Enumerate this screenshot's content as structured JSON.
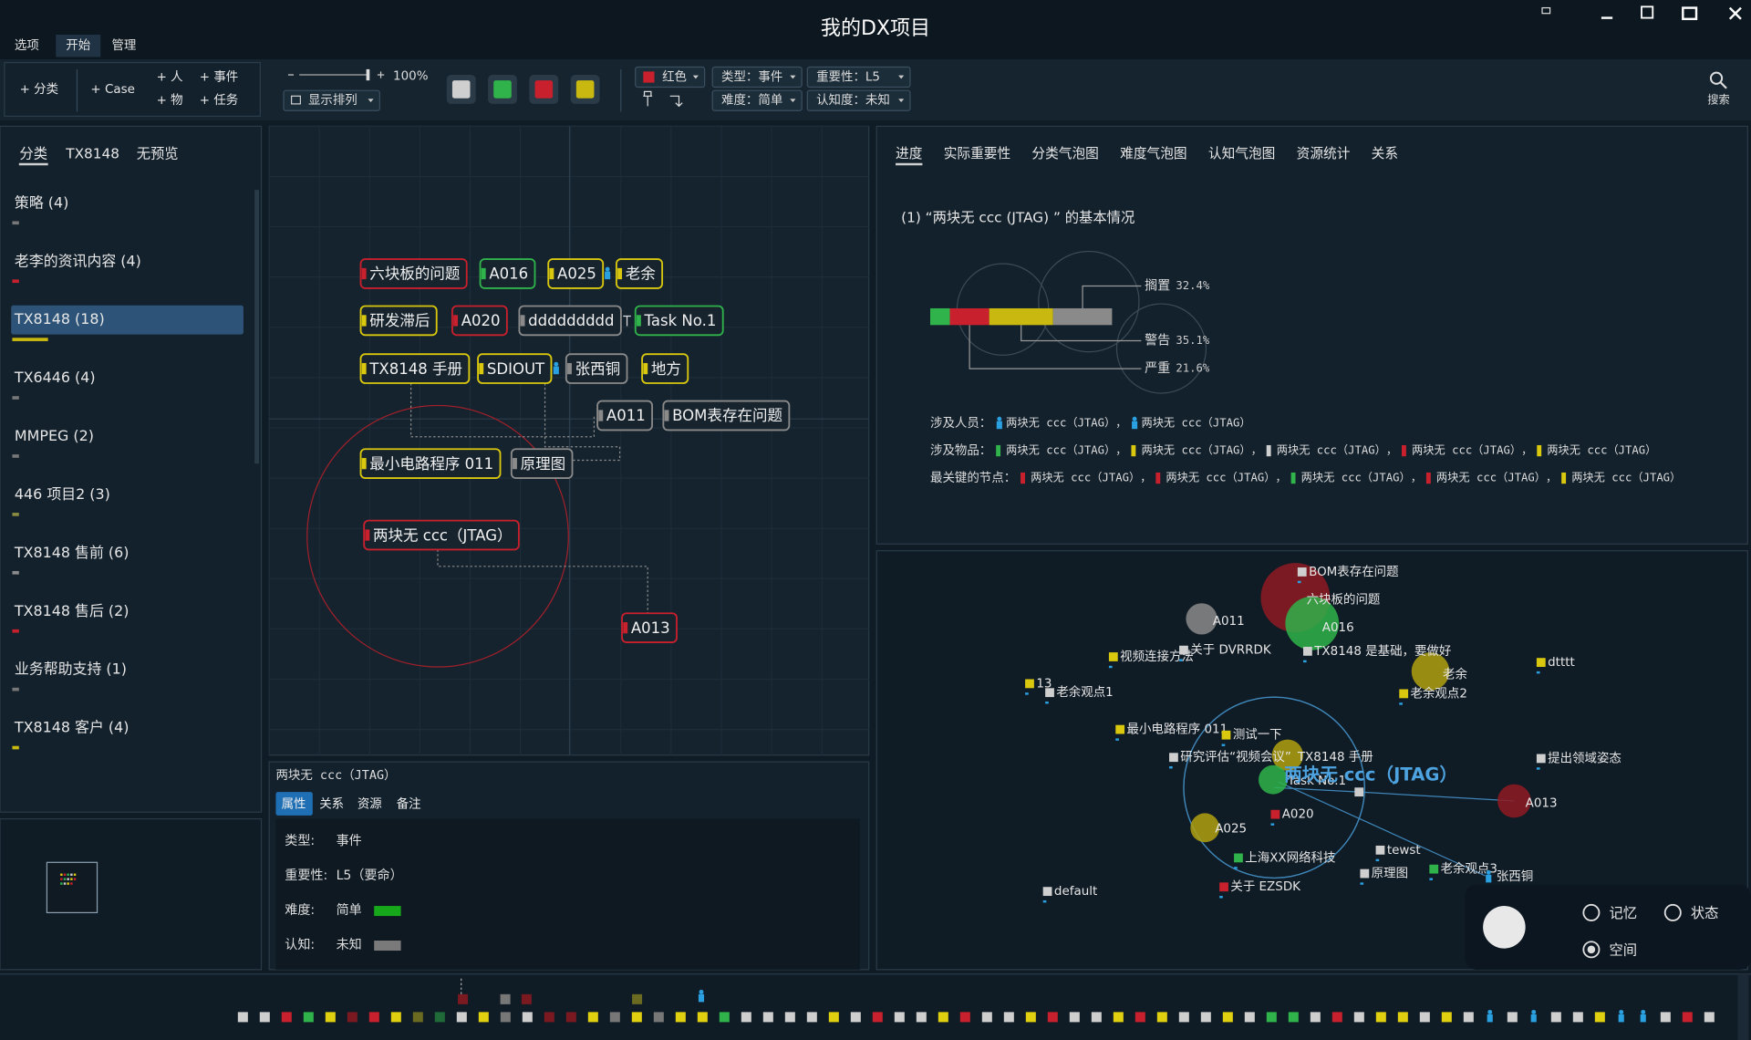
{
  "title": "我的DX项目",
  "menu": [
    "选项",
    "开始",
    "管理"
  ],
  "toolbar": {
    "add": [
      "+ 分类",
      "+ Case",
      "+ 人",
      "+ 物",
      "+ 事件",
      "+ 任务"
    ],
    "zoom": "100%",
    "arrange": "显示排列",
    "swatches": [
      "#cfcfcf",
      "#2fb34a",
      "#c8202c",
      "#c8b810"
    ],
    "color": {
      "label": "红色",
      "color": "#c8202c"
    },
    "filters": [
      "类型：事件",
      "重要性：L5",
      "难度：简单",
      "认知度：未知"
    ],
    "search": "搜索"
  },
  "left_tabs": [
    "分类",
    "TX8148",
    "无预览"
  ],
  "categories": {
    "items": [
      "策略 (4)",
      "老李的资讯内容 (4)",
      "TX8148 (18)",
      "TX6446 (4)",
      "MMPEG (2)",
      "446 项目2 (3)",
      "TX8148 售前 (6)",
      "TX8148 售后 (2)",
      "业务帮助支持 (1)",
      "TX8148 客户 (4)"
    ],
    "selected": 2
  },
  "canvas": {
    "nodes": [
      {
        "label": "六块板的问题",
        "color": "#c8202c"
      },
      {
        "label": "A016",
        "color": "#2fb34a"
      },
      {
        "label": "A025",
        "color": "#d9c80e"
      },
      {
        "label": "老余",
        "color": "#d9c80e"
      },
      {
        "label": "研发滞后",
        "color": "#d9c80e"
      },
      {
        "label": "A020",
        "color": "#c8202c"
      },
      {
        "label": "ddddddddd",
        "color": "#8a8a8a"
      },
      {
        "label": "Task No.1",
        "color": "#2fb34a"
      },
      {
        "label": "TX8148 手册",
        "color": "#d9c80e"
      },
      {
        "label": "SDIOUT",
        "color": "#d9c80e"
      },
      {
        "label": "张西铜",
        "color": "#8a8a8a"
      },
      {
        "label": "地方",
        "color": "#d9c80e"
      },
      {
        "label": "A011",
        "color": "#8a8a8a"
      },
      {
        "label": "BOM表存在问题",
        "color": "#8a8a8a"
      },
      {
        "label": "最小电路程序 011",
        "color": "#d9c80e"
      },
      {
        "label": "原理图",
        "color": "#8a8a8a"
      },
      {
        "label": "两块无 ccc（JTAG）",
        "color": "#c8202c"
      },
      {
        "label": "A013",
        "color": "#c8202c"
      }
    ]
  },
  "detail": {
    "title": "两块无 ccc（JTAG）",
    "tabs": [
      "属性",
      "关系",
      "资源",
      "备注"
    ],
    "selected": 0,
    "props": [
      {
        "key": "类型:",
        "value": "事件"
      },
      {
        "key": "重要性:",
        "value": "L5（要命）"
      },
      {
        "key": "难度:",
        "value": "简单",
        "color": "#16a81a"
      },
      {
        "key": "认知:",
        "value": "未知",
        "color": "#7a7a7a"
      }
    ]
  },
  "right_tabs": [
    "进度",
    "实际重要性",
    "分类气泡图",
    "难度气泡图",
    "认知气泡图",
    "资源统计",
    "关系"
  ],
  "summary": {
    "heading": "(1) “两块无 ccc (JTAG) ” 的基本情况",
    "segments": [
      {
        "value": 10.8,
        "color": "#2fb34a"
      },
      {
        "value": 21.6,
        "color": "#c8202c",
        "name": "严重",
        "value_label": "21.6%"
      },
      {
        "value": 35.1,
        "color": "#c8b810",
        "name": "警告",
        "value_label": "35.1%"
      },
      {
        "value": 32.4,
        "color": "#8a8a8a",
        "name": "搁置",
        "value_label": "32.4%"
      }
    ],
    "rows": [
      {
        "label": "涉及人员：",
        "separator": "，",
        "items": [
          {
            "name": "两块无 ccc（JTAG）",
            "color": "#2aa0e0",
            "person": true
          },
          {
            "name": "两块无 ccc（JTAG）",
            "color": "#2aa0e0",
            "person": true
          }
        ]
      },
      {
        "label": "涉及物品：",
        "separator": "，",
        "items": [
          {
            "name": "两块无 ccc（JTAG）",
            "color": "#2fb34a"
          },
          {
            "name": "两块无 ccc（JTAG）",
            "color": "#d9c80e"
          },
          {
            "name": "两块无 ccc（JTAG）",
            "color": "#cfcfcf"
          },
          {
            "name": "两块无 ccc（JTAG）",
            "color": "#c8202c"
          },
          {
            "name": "两块无 ccc（JTAG）",
            "color": "#d9c80e"
          }
        ]
      },
      {
        "label": "最关键的节点：",
        "separator": "，",
        "items": [
          {
            "name": "两块无 ccc（JTAG）",
            "color": "#c8202c"
          },
          {
            "name": "两块无 ccc（JTAG）",
            "color": "#c8202c"
          },
          {
            "name": "两块无 ccc（JTAG）",
            "color": "#2fb34a"
          },
          {
            "name": "两块无 ccc（JTAG）",
            "color": "#c8202c"
          },
          {
            "name": "两块无 ccc（JTAG）",
            "color": "#d9c80e"
          }
        ]
      }
    ]
  },
  "graph": {
    "focus": "两块无 ccc（JTAG）",
    "nodes": [
      {
        "label": "BOM表存在问题",
        "color": "#cfcfcf"
      },
      {
        "label": "六块板的问题",
        "color": "#8e1a22"
      },
      {
        "label": "A011",
        "color": "#8a8a8a"
      },
      {
        "label": "A016",
        "color": "#2fb34a"
      },
      {
        "label": "TX8148 是基础，要做好",
        "color": "#cfcfcf"
      },
      {
        "label": "视频连接方法",
        "color": "#d9c80e"
      },
      {
        "label": "关于 DVRRDK",
        "color": "#cfcfcf"
      },
      {
        "label": "dtttt",
        "color": "#d9c80e"
      },
      {
        "label": "老余",
        "color": "#b0a010"
      },
      {
        "label": "13",
        "color": "#d9c80e"
      },
      {
        "label": "老余观点1",
        "color": "#cfcfcf"
      },
      {
        "label": "老余观点2",
        "color": "#d9c80e"
      },
      {
        "label": "最小电路程序 011",
        "color": "#d9c80e"
      },
      {
        "label": "测试一下",
        "color": "#d9c80e"
      },
      {
        "label": "研究评估“视频会议”",
        "color": "#cfcfcf"
      },
      {
        "label": "TX8148 手册",
        "color": "#b0a010"
      },
      {
        "label": "提出领域姿态",
        "color": "#cfcfcf"
      },
      {
        "label": "Task No.1",
        "color": "#2fb34a"
      },
      {
        "label": "A013",
        "color": "#8e1a22"
      },
      {
        "label": "A020",
        "color": "#c8202c"
      },
      {
        "label": "A025",
        "color": "#b0a010"
      },
      {
        "label": "tewst",
        "color": "#cfcfcf"
      },
      {
        "label": "上海XX网络科技",
        "color": "#2fb34a"
      },
      {
        "label": "原理图",
        "color": "#cfcfcf"
      },
      {
        "label": "老余观点3",
        "color": "#2fb34a"
      },
      {
        "label": "张西铜",
        "color": "#2aa0e0"
      },
      {
        "label": "关于 EZSDK",
        "color": "#c8202c"
      },
      {
        "label": "default",
        "color": "#cfcfcf"
      }
    ]
  },
  "radio": {
    "options": [
      "记忆",
      "状态",
      "空间"
    ],
    "selected": 2
  }
}
